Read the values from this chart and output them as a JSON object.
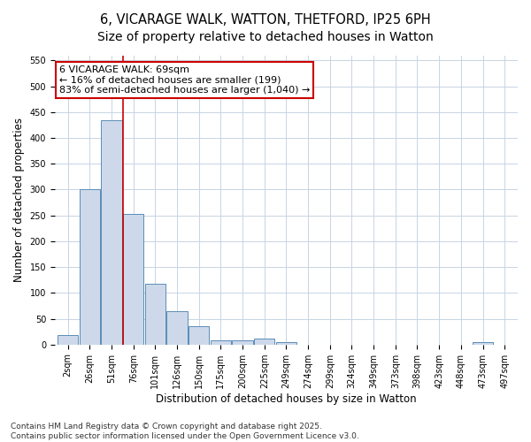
{
  "title_line1": "6, VICARAGE WALK, WATTON, THETFORD, IP25 6PH",
  "title_line2": "Size of property relative to detached houses in Watton",
  "xlabel": "Distribution of detached houses by size in Watton",
  "ylabel": "Number of detached properties",
  "categories": [
    "2sqm",
    "26sqm",
    "51sqm",
    "76sqm",
    "101sqm",
    "126sqm",
    "150sqm",
    "175sqm",
    "200sqm",
    "225sqm",
    "249sqm",
    "274sqm",
    "299sqm",
    "324sqm",
    "349sqm",
    "373sqm",
    "398sqm",
    "423sqm",
    "448sqm",
    "473sqm",
    "497sqm"
  ],
  "bar_heights": [
    18,
    300,
    435,
    253,
    117,
    65,
    35,
    8,
    8,
    11,
    4,
    0,
    0,
    0,
    0,
    0,
    0,
    0,
    0,
    4,
    0
  ],
  "bar_color": "#cdd9ea",
  "bar_edge_color": "#5b8db8",
  "vline_x_idx": 3,
  "vline_color": "#cc0000",
  "annotation_box_text_line1": "6 VICARAGE WALK: 69sqm",
  "annotation_box_text_line2": "← 16% of detached houses are smaller (199)",
  "annotation_box_text_line3": "83% of semi-detached houses are larger (1,040) →",
  "annotation_box_color": "#cc0000",
  "annotation_box_fill": "#ffffff",
  "ylim": [
    0,
    560
  ],
  "yticks": [
    0,
    50,
    100,
    150,
    200,
    250,
    300,
    350,
    400,
    450,
    500,
    550
  ],
  "footnote_line1": "Contains HM Land Registry data © Crown copyright and database right 2025.",
  "footnote_line2": "Contains public sector information licensed under the Open Government Licence v3.0.",
  "bg_color": "#ffffff",
  "grid_color": "#c8d4e4",
  "title_fontsize": 10.5,
  "axis_label_fontsize": 8.5,
  "tick_fontsize": 7,
  "annotation_fontsize": 8,
  "footnote_fontsize": 6.5
}
